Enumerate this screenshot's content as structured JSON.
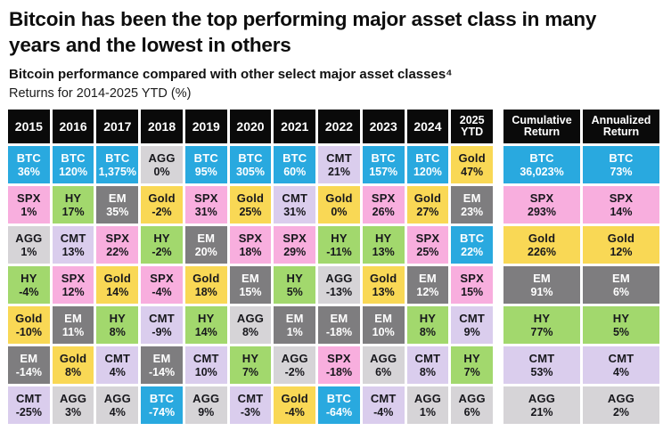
{
  "page": {
    "title": "Bitcoin has been the top performing major asset class in many years and the lowest in others",
    "subtitle": "Bitcoin performance compared with other select major asset classes⁴",
    "caption": "Returns for 2014-2025 YTD (%)"
  },
  "colors": {
    "header_bg": "#0a0a0a",
    "header_text": "#ffffff",
    "assets": {
      "BTC": {
        "bg": "#29a9df",
        "text": "#ffffff"
      },
      "SPX": {
        "bg": "#f8aede",
        "text": "#17171c"
      },
      "AGG": {
        "bg": "#d6d4d7",
        "text": "#17171c"
      },
      "HY": {
        "bg": "#a2d86d",
        "text": "#17171c"
      },
      "Gold": {
        "bg": "#f9d855",
        "text": "#17171c"
      },
      "EM": {
        "bg": "#7e7d7f",
        "text": "#ffffff"
      },
      "CMT": {
        "bg": "#dacded",
        "text": "#17171c"
      }
    }
  },
  "chart_data": {
    "type": "table",
    "title": "Bitcoin performance compared with other select major asset classes",
    "subtitle": "Returns for 2014-2025 YTD (%)",
    "legend_position": "none",
    "columns": [
      "2015",
      "2016",
      "2017",
      "2018",
      "2019",
      "2020",
      "2021",
      "2022",
      "2023",
      "2024",
      "2025 YTD",
      "Cumulative Return",
      "Annualized Return"
    ],
    "rows": [
      [
        {
          "a": "BTC",
          "v": "36%"
        },
        {
          "a": "BTC",
          "v": "120%"
        },
        {
          "a": "BTC",
          "v": "1,375%"
        },
        {
          "a": "AGG",
          "v": "0%"
        },
        {
          "a": "BTC",
          "v": "95%"
        },
        {
          "a": "BTC",
          "v": "305%"
        },
        {
          "a": "BTC",
          "v": "60%"
        },
        {
          "a": "CMT",
          "v": "21%"
        },
        {
          "a": "BTC",
          "v": "157%"
        },
        {
          "a": "BTC",
          "v": "120%"
        },
        {
          "a": "Gold",
          "v": "47%"
        },
        {
          "a": "BTC",
          "v": "36,023%"
        },
        {
          "a": "BTC",
          "v": "73%"
        }
      ],
      [
        {
          "a": "SPX",
          "v": "1%"
        },
        {
          "a": "HY",
          "v": "17%"
        },
        {
          "a": "EM",
          "v": "35%"
        },
        {
          "a": "Gold",
          "v": "-2%"
        },
        {
          "a": "SPX",
          "v": "31%"
        },
        {
          "a": "Gold",
          "v": "25%"
        },
        {
          "a": "CMT",
          "v": "31%"
        },
        {
          "a": "Gold",
          "v": "0%"
        },
        {
          "a": "SPX",
          "v": "26%"
        },
        {
          "a": "Gold",
          "v": "27%"
        },
        {
          "a": "EM",
          "v": "23%"
        },
        {
          "a": "SPX",
          "v": "293%"
        },
        {
          "a": "SPX",
          "v": "14%"
        }
      ],
      [
        {
          "a": "AGG",
          "v": "1%"
        },
        {
          "a": "CMT",
          "v": "13%"
        },
        {
          "a": "SPX",
          "v": "22%"
        },
        {
          "a": "HY",
          "v": "-2%"
        },
        {
          "a": "EM",
          "v": "20%"
        },
        {
          "a": "SPX",
          "v": "18%"
        },
        {
          "a": "SPX",
          "v": "29%"
        },
        {
          "a": "HY",
          "v": "-11%"
        },
        {
          "a": "HY",
          "v": "13%"
        },
        {
          "a": "SPX",
          "v": "25%"
        },
        {
          "a": "BTC",
          "v": "22%"
        },
        {
          "a": "Gold",
          "v": "226%"
        },
        {
          "a": "Gold",
          "v": "12%"
        }
      ],
      [
        {
          "a": "HY",
          "v": "-4%"
        },
        {
          "a": "SPX",
          "v": "12%"
        },
        {
          "a": "Gold",
          "v": "14%"
        },
        {
          "a": "SPX",
          "v": "-4%"
        },
        {
          "a": "Gold",
          "v": "18%"
        },
        {
          "a": "EM",
          "v": "15%"
        },
        {
          "a": "HY",
          "v": "5%"
        },
        {
          "a": "AGG",
          "v": "-13%"
        },
        {
          "a": "Gold",
          "v": "13%"
        },
        {
          "a": "EM",
          "v": "12%"
        },
        {
          "a": "SPX",
          "v": "15%"
        },
        {
          "a": "EM",
          "v": "91%"
        },
        {
          "a": "EM",
          "v": "6%"
        }
      ],
      [
        {
          "a": "Gold",
          "v": "-10%"
        },
        {
          "a": "EM",
          "v": "11%"
        },
        {
          "a": "HY",
          "v": "8%"
        },
        {
          "a": "CMT",
          "v": "-9%"
        },
        {
          "a": "HY",
          "v": "14%"
        },
        {
          "a": "AGG",
          "v": "8%"
        },
        {
          "a": "EM",
          "v": "1%"
        },
        {
          "a": "EM",
          "v": "-18%"
        },
        {
          "a": "EM",
          "v": "10%"
        },
        {
          "a": "HY",
          "v": "8%"
        },
        {
          "a": "CMT",
          "v": "9%"
        },
        {
          "a": "HY",
          "v": "77%"
        },
        {
          "a": "HY",
          "v": "5%"
        }
      ],
      [
        {
          "a": "EM",
          "v": "-14%"
        },
        {
          "a": "Gold",
          "v": "8%"
        },
        {
          "a": "CMT",
          "v": "4%"
        },
        {
          "a": "EM",
          "v": "-14%"
        },
        {
          "a": "CMT",
          "v": "10%"
        },
        {
          "a": "HY",
          "v": "7%"
        },
        {
          "a": "AGG",
          "v": "-2%"
        },
        {
          "a": "SPX",
          "v": "-18%"
        },
        {
          "a": "AGG",
          "v": "6%"
        },
        {
          "a": "CMT",
          "v": "8%"
        },
        {
          "a": "HY",
          "v": "7%"
        },
        {
          "a": "CMT",
          "v": "53%"
        },
        {
          "a": "CMT",
          "v": "4%"
        }
      ],
      [
        {
          "a": "CMT",
          "v": "-25%"
        },
        {
          "a": "AGG",
          "v": "3%"
        },
        {
          "a": "AGG",
          "v": "4%"
        },
        {
          "a": "BTC",
          "v": "-74%"
        },
        {
          "a": "AGG",
          "v": "9%"
        },
        {
          "a": "CMT",
          "v": "-3%"
        },
        {
          "a": "Gold",
          "v": "-4%"
        },
        {
          "a": "BTC",
          "v": "-64%"
        },
        {
          "a": "CMT",
          "v": "-4%"
        },
        {
          "a": "AGG",
          "v": "1%"
        },
        {
          "a": "AGG",
          "v": "6%"
        },
        {
          "a": "AGG",
          "v": "21%"
        },
        {
          "a": "AGG",
          "v": "2%"
        }
      ]
    ]
  }
}
